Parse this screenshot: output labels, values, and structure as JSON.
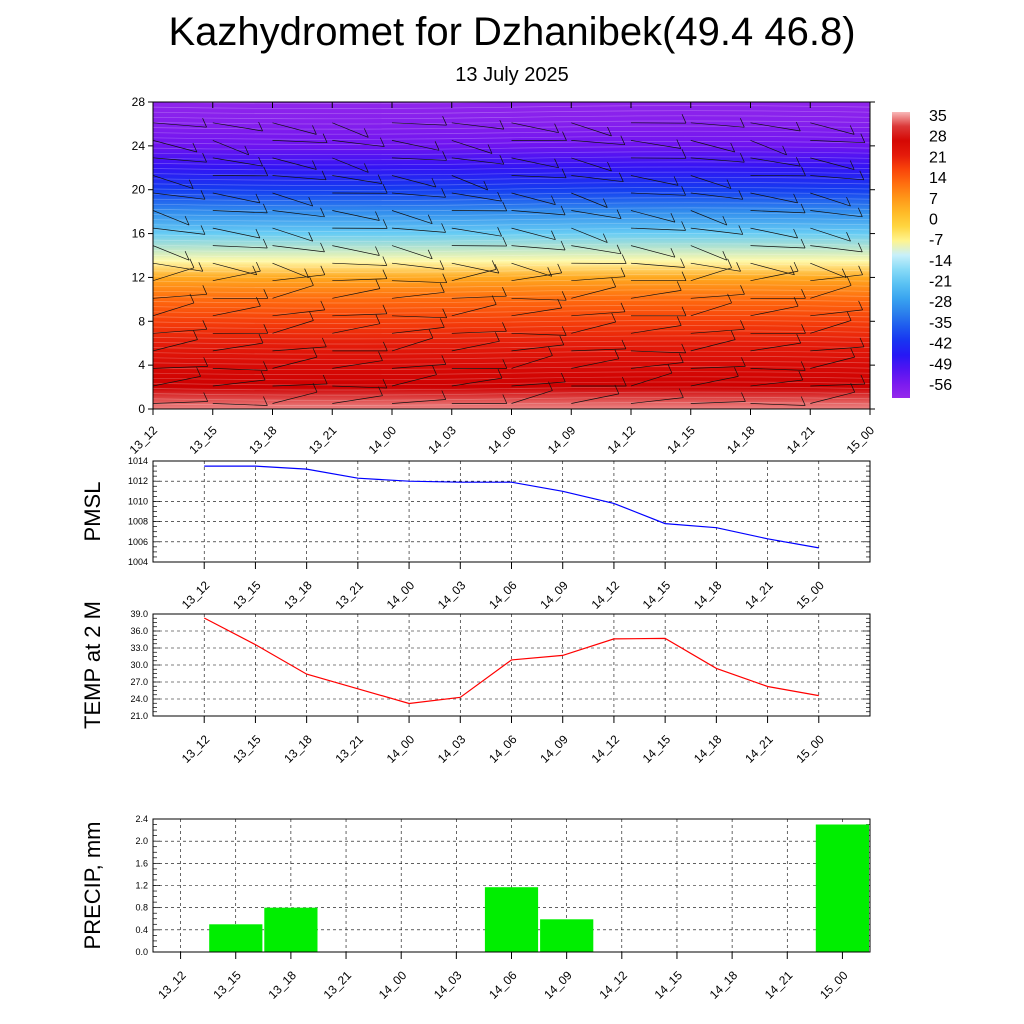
{
  "header": {
    "title": "Kazhydromet for Dzhanibek(49.4 46.8)",
    "subtitle": "13 July 2025"
  },
  "chart_data": [
    {
      "type": "heatmap",
      "name": "upper-air-cross-section",
      "x_ticks": [
        "13_12",
        "13_15",
        "13_18",
        "13_21",
        "14_00",
        "14_03",
        "14_06",
        "14_09",
        "14_12",
        "14_15",
        "14_18",
        "14_21",
        "15_00"
      ],
      "y_ticks": [
        0,
        4,
        8,
        12,
        16,
        20,
        24,
        28
      ],
      "ylim": [
        0,
        28
      ],
      "temperature_levels": [
        0,
        2,
        4,
        6,
        8,
        10,
        12,
        13.5,
        16,
        18,
        20,
        22,
        24,
        26,
        28
      ],
      "temperature_profile": [
        33,
        28,
        24,
        20,
        16,
        11,
        3,
        -10,
        -22,
        -32,
        -42,
        -50,
        -56,
        -60,
        -62
      ],
      "colorbar": {
        "labels": [
          "35",
          "28",
          "21",
          "14",
          "7",
          "0",
          "-7",
          "-14",
          "-21",
          "-28",
          "-35",
          "-42",
          "-49",
          "-56"
        ],
        "min": -63,
        "max": 35
      },
      "wind_barbs": true
    },
    {
      "type": "line",
      "name": "pmsl",
      "ylabel": "PMSL",
      "categories": [
        "13_12",
        "13_15",
        "13_18",
        "13_21",
        "14_00",
        "14_03",
        "14_06",
        "14_09",
        "14_12",
        "14_15",
        "14_18",
        "14_21",
        "15_00"
      ],
      "values": [
        1013.5,
        1013.5,
        1013.2,
        1012.3,
        1012.0,
        1011.9,
        1011.9,
        1011.0,
        1009.8,
        1007.8,
        1007.4,
        1006.3,
        1005.4
      ],
      "ylim": [
        1004,
        1014
      ],
      "y_ticks": [
        "1004",
        "1006",
        "1008",
        "1010",
        "1012",
        "1014"
      ],
      "color": "#0000ff"
    },
    {
      "type": "line",
      "name": "temp-2m",
      "ylabel": "TEMP at 2 M",
      "categories": [
        "13_12",
        "13_15",
        "13_18",
        "13_21",
        "14_00",
        "14_03",
        "14_06",
        "14_09",
        "14_12",
        "14_15",
        "14_18",
        "14_21",
        "15_00"
      ],
      "values": [
        38.3,
        33.6,
        28.4,
        25.8,
        23.2,
        24.3,
        30.9,
        31.7,
        34.6,
        34.7,
        29.4,
        26.2,
        24.6
      ],
      "ylim": [
        21,
        39
      ],
      "y_ticks": [
        "21.0",
        "24.0",
        "27.0",
        "30.0",
        "33.0",
        "36.0",
        "39.0"
      ],
      "color": "#ff0000"
    },
    {
      "type": "bar",
      "name": "precip",
      "ylabel": "PRECIP, mm",
      "categories": [
        "13_12",
        "13_15",
        "13_18",
        "13_21",
        "14_00",
        "14_03",
        "14_06",
        "14_09",
        "14_12",
        "14_15",
        "14_18",
        "14_21",
        "15_00"
      ],
      "values": [
        0,
        0.5,
        0.8,
        0,
        0,
        0,
        1.17,
        0.59,
        0,
        0,
        0,
        0,
        2.3
      ],
      "ylim": [
        0,
        2.4
      ],
      "y_ticks": [
        "0.0",
        "0.4",
        "0.8",
        "1.2",
        "1.6",
        "2.0",
        "2.4"
      ],
      "color": "#00ee00"
    }
  ]
}
